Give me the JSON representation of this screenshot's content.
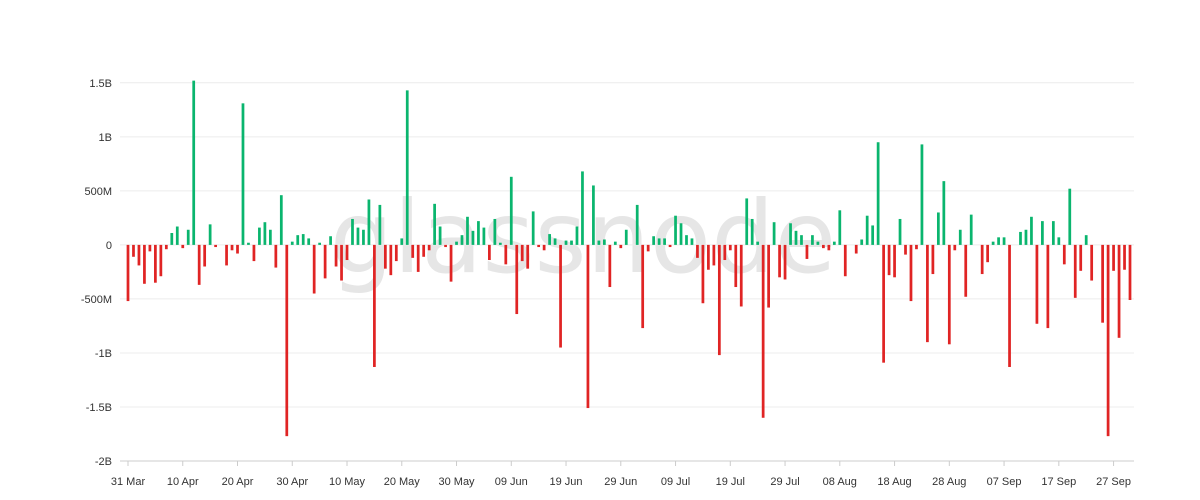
{
  "watermark": "glassnode",
  "colors": {
    "positive": "#0ab56e",
    "negative": "#e02424",
    "grid": "#ececec",
    "axis": "#cccccc",
    "watermark": "#e6e6e6"
  },
  "chart_data": {
    "type": "bar",
    "title": "",
    "xlabel": "",
    "ylabel": "",
    "ylim": [
      -2000000000,
      1600000000
    ],
    "y_ticks": [
      {
        "value": 1500000000,
        "label": "1.5B"
      },
      {
        "value": 1000000000,
        "label": "1B"
      },
      {
        "value": 500000000,
        "label": "500M"
      },
      {
        "value": 0,
        "label": "0"
      },
      {
        "value": -500000000,
        "label": "-500M"
      },
      {
        "value": -1000000000,
        "label": "-1B"
      },
      {
        "value": -1500000000,
        "label": "-1.5B"
      },
      {
        "value": -2000000000,
        "label": "-2B"
      }
    ],
    "x_start": "31 Mar",
    "x_ticks": [
      {
        "day": 0,
        "label": "31 Mar"
      },
      {
        "day": 10,
        "label": "10 Apr"
      },
      {
        "day": 20,
        "label": "20 Apr"
      },
      {
        "day": 30,
        "label": "30 Apr"
      },
      {
        "day": 40,
        "label": "10 May"
      },
      {
        "day": 50,
        "label": "20 May"
      },
      {
        "day": 60,
        "label": "30 May"
      },
      {
        "day": 70,
        "label": "09 Jun"
      },
      {
        "day": 80,
        "label": "19 Jun"
      },
      {
        "day": 90,
        "label": "29 Jun"
      },
      {
        "day": 100,
        "label": "09 Jul"
      },
      {
        "day": 110,
        "label": "19 Jul"
      },
      {
        "day": 120,
        "label": "29 Jul"
      },
      {
        "day": 130,
        "label": "08 Aug"
      },
      {
        "day": 140,
        "label": "18 Aug"
      },
      {
        "day": 150,
        "label": "28 Aug"
      },
      {
        "day": 160,
        "label": "07 Sep"
      },
      {
        "day": 170,
        "label": "17 Sep"
      },
      {
        "day": 180,
        "label": "27 Sep"
      }
    ],
    "values": [
      -520000000,
      -110000000,
      -190000000,
      -360000000,
      -60000000,
      -350000000,
      -290000000,
      -40000000,
      110000000,
      170000000,
      -30000000,
      140000000,
      1520000000,
      -370000000,
      -200000000,
      190000000,
      -20000000,
      0,
      -190000000,
      -50000000,
      -80000000,
      1310000000,
      20000000,
      -150000000,
      160000000,
      210000000,
      140000000,
      -210000000,
      460000000,
      -1770000000,
      30000000,
      90000000,
      100000000,
      60000000,
      -450000000,
      20000000,
      -310000000,
      80000000,
      -200000000,
      -330000000,
      -140000000,
      240000000,
      160000000,
      140000000,
      420000000,
      -1130000000,
      370000000,
      -220000000,
      -280000000,
      -150000000,
      60000000,
      1430000000,
      -120000000,
      -250000000,
      -110000000,
      -50000000,
      380000000,
      170000000,
      -20000000,
      -340000000,
      30000000,
      90000000,
      260000000,
      130000000,
      220000000,
      160000000,
      -140000000,
      240000000,
      20000000,
      -180000000,
      630000000,
      -640000000,
      -150000000,
      -220000000,
      310000000,
      -20000000,
      -50000000,
      100000000,
      60000000,
      -950000000,
      40000000,
      40000000,
      170000000,
      680000000,
      -1510000000,
      550000000,
      40000000,
      50000000,
      -390000000,
      30000000,
      -30000000,
      140000000,
      0,
      370000000,
      -770000000,
      -60000000,
      80000000,
      60000000,
      60000000,
      -20000000,
      270000000,
      200000000,
      90000000,
      60000000,
      -120000000,
      -540000000,
      -230000000,
      -190000000,
      -1020000000,
      -140000000,
      -50000000,
      -390000000,
      -570000000,
      430000000,
      240000000,
      30000000,
      -1600000000,
      -580000000,
      210000000,
      -300000000,
      -320000000,
      200000000,
      130000000,
      90000000,
      -130000000,
      90000000,
      30000000,
      -30000000,
      -50000000,
      30000000,
      320000000,
      -290000000,
      0,
      -80000000,
      50000000,
      270000000,
      180000000,
      950000000,
      -1090000000,
      -280000000,
      -300000000,
      240000000,
      -90000000,
      -520000000,
      -40000000,
      930000000,
      -900000000,
      -270000000,
      300000000,
      590000000,
      -920000000,
      -50000000,
      140000000,
      -480000000,
      280000000,
      0,
      -270000000,
      -160000000,
      30000000,
      70000000,
      70000000,
      -1130000000,
      0,
      120000000,
      140000000,
      260000000,
      -730000000,
      220000000,
      -770000000,
      220000000,
      70000000,
      -180000000,
      520000000,
      -490000000,
      -240000000,
      90000000,
      -330000000,
      0,
      -720000000,
      -1770000000,
      -240000000,
      -860000000,
      -230000000,
      -510000000
    ]
  }
}
